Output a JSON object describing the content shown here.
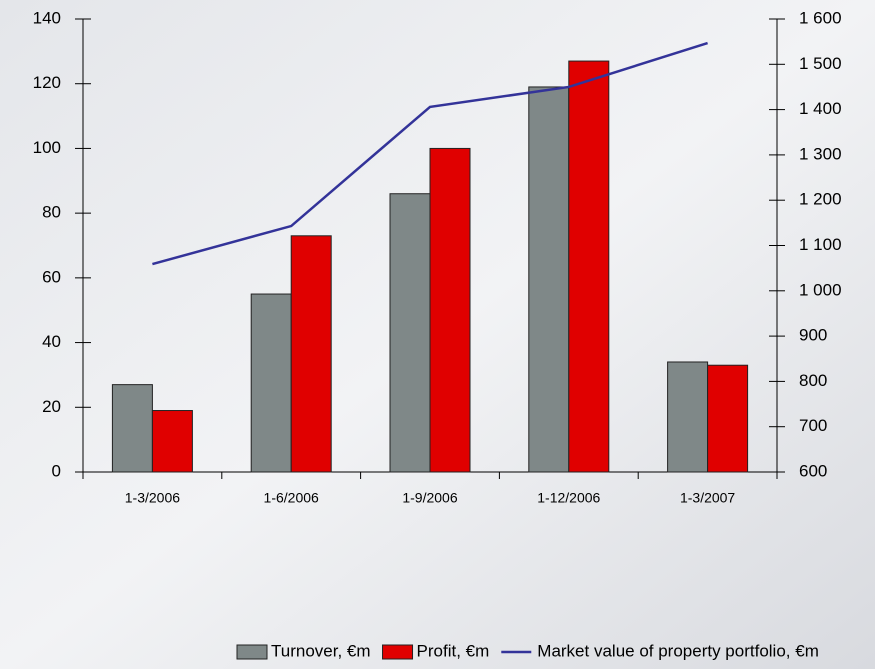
{
  "chart_data": {
    "type": "bar-line",
    "categories": [
      "1-3/2006",
      "1-6/2006",
      "1-9/2006",
      "1-12/2006",
      "1-3/2007"
    ],
    "series": [
      {
        "name": "Turnover, €m",
        "color": "#7f8888",
        "values": [
          27,
          55,
          86,
          119,
          34
        ]
      },
      {
        "name": "Profit, €m",
        "color": "#e00000",
        "values": [
          19,
          73,
          100,
          127,
          33
        ]
      },
      {
        "name": "Market value of property portfolio, €m",
        "color": "#333399",
        "axis": "y2",
        "values": [
          1059,
          1143,
          1406,
          1450,
          1547
        ]
      }
    ],
    "ylim": [
      0,
      140
    ],
    "yticks": [
      0,
      20,
      40,
      60,
      80,
      100,
      120,
      140
    ],
    "y2lim": [
      600,
      1600
    ],
    "y2ticks": [
      600,
      700,
      800,
      900,
      {
        "value": 1000,
        "label": "1 000"
      },
      {
        "value": 1100,
        "label": "1 100"
      },
      {
        "value": 1200,
        "label": "1 200"
      },
      {
        "value": 1300,
        "label": "1 300"
      },
      {
        "value": 1400,
        "label": "1 400"
      },
      {
        "value": 1500,
        "label": "1 500"
      },
      {
        "value": 1600,
        "label": "1 600"
      }
    ],
    "legend": "bottom"
  }
}
